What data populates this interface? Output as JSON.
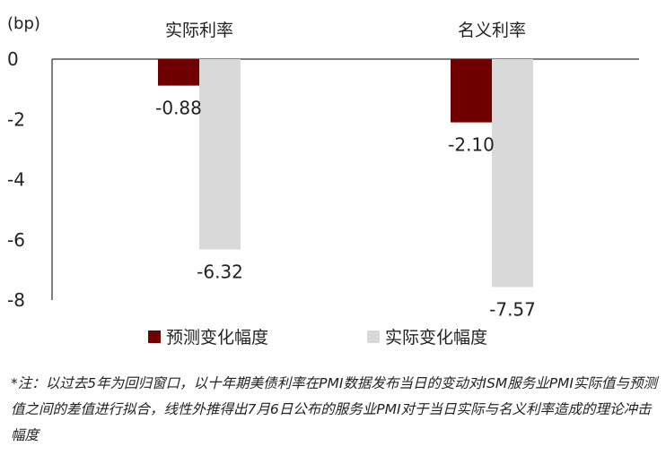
{
  "chart_data": {
    "type": "bar",
    "unit_label": "(bp)",
    "categories": [
      "实际利率",
      "名义利率"
    ],
    "series": [
      {
        "name": "预测变化幅度",
        "values": [
          -0.88,
          -2.1
        ],
        "color": "#6e0000"
      },
      {
        "name": "实际变化幅度",
        "values": [
          -6.32,
          -7.57
        ],
        "color": "#d9d9d9"
      }
    ],
    "data_labels": [
      [
        "-0.88",
        "-2.10"
      ],
      [
        "-6.32",
        "-7.57"
      ]
    ],
    "ylim": [
      -8,
      0
    ],
    "yticks": [
      0,
      -2,
      -4,
      -6,
      -8
    ],
    "ytick_labels": [
      "0",
      "-2",
      "-4",
      "-6",
      "-8"
    ],
    "legend_position": "bottom",
    "grid": false
  },
  "note": "*注：以过去5年为回归窗口，以十年期美债利率在PMI数据发布当日的变动对ISM服务业PMI实际值与预测值之间的差值进行拟合，线性外推得出7月6日公布的服务业PMI对于当日实际与名义利率造成的理论冲击幅度"
}
